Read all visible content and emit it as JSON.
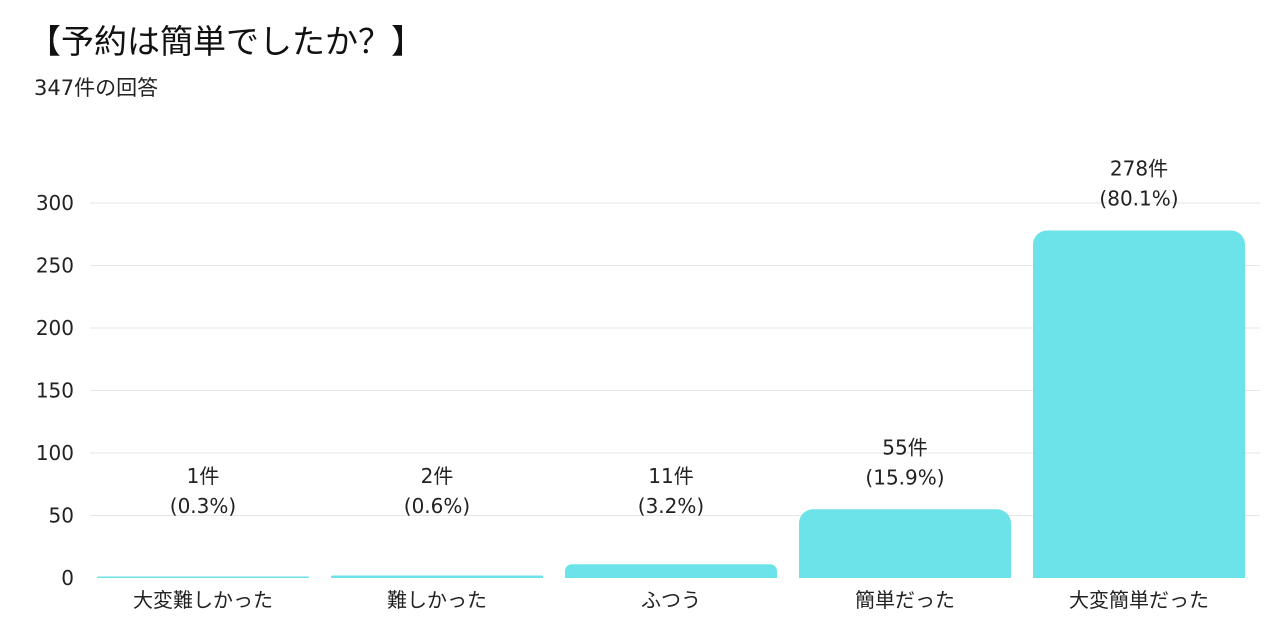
{
  "title": "【予約は簡単でしたか？】",
  "subtitle": "347件の回答",
  "colors": {
    "bar": "#6be3e8",
    "grid": "#e6e6e6"
  },
  "chart_data": {
    "type": "bar",
    "categories": [
      "大変難しかった",
      "難しかった",
      "ふつう",
      "簡単だった",
      "大変簡単だった"
    ],
    "values": [
      1,
      2,
      11,
      55,
      278
    ],
    "data_labels": [
      [
        "1件",
        "(0.3%)"
      ],
      [
        "2件",
        "(0.6%)"
      ],
      [
        "11件",
        "(3.2%)"
      ],
      [
        "55件",
        "(15.9%)"
      ],
      [
        "278件",
        "(80.1%)"
      ]
    ],
    "yticks": [
      0,
      50,
      100,
      150,
      200,
      250,
      300
    ],
    "ylim": [
      0,
      300
    ],
    "grid": true
  }
}
